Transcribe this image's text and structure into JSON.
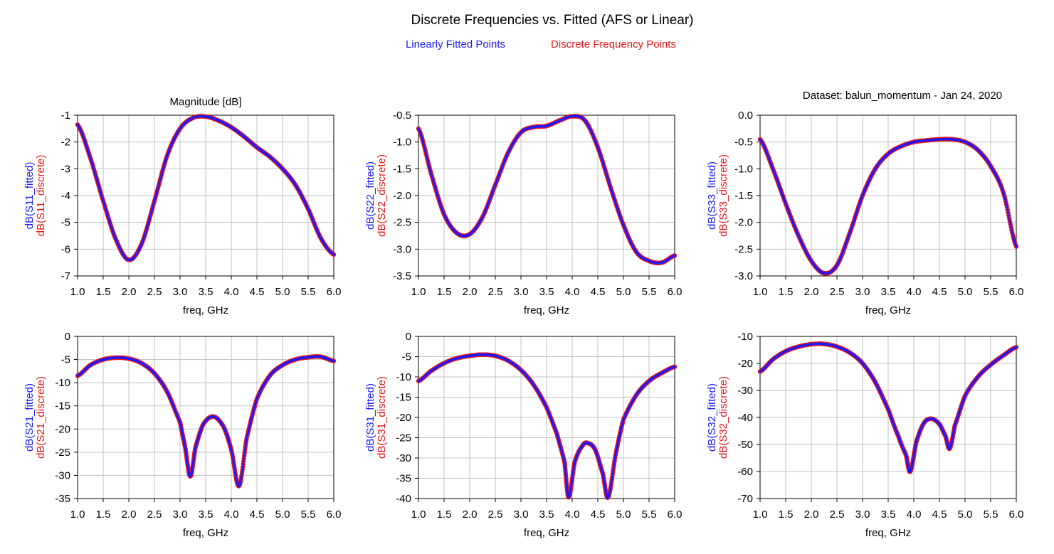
{
  "header": {
    "title": "Discrete Frequencies vs. Fitted (AFS or Linear)",
    "legend_fitted": "Linearly Fitted Points",
    "legend_discrete": "Discrete Frequency Points",
    "plot_caption": "Magnitude [dB]",
    "dataset_label": "Dataset: balun_momentum - Jan 24, 2020"
  },
  "colors": {
    "fitted": "#1a1aff",
    "discrete": "#e8141b",
    "grid": "#c0c0c0",
    "axis": "#000000"
  },
  "chart_data": [
    {
      "type": "line",
      "xlabel": "freq, GHz",
      "ylabel_fitted": "dB(S11_fitted)",
      "ylabel_discrete": "dB(S11_discrete)",
      "xlim": [
        1.0,
        6.0
      ],
      "ylim": [
        -7,
        -1
      ],
      "xticks": [
        "1.0",
        "1.5",
        "2.0",
        "2.5",
        "3.0",
        "3.5",
        "4.0",
        "4.5",
        "5.0",
        "5.5",
        "6.0"
      ],
      "yticks": [
        "-7",
        "-6",
        "-5",
        "-4",
        "-3",
        "-2",
        "-1"
      ],
      "x": [
        1.0,
        1.25,
        1.5,
        1.75,
        2.0,
        2.25,
        2.5,
        2.75,
        3.0,
        3.25,
        3.5,
        3.75,
        4.0,
        4.25,
        4.5,
        4.75,
        5.0,
        5.25,
        5.5,
        5.75,
        6.0
      ],
      "values": [
        -1.35,
        -2.6,
        -4.2,
        -5.65,
        -6.4,
        -5.8,
        -4.2,
        -2.5,
        -1.5,
        -1.1,
        -1.05,
        -1.2,
        -1.45,
        -1.8,
        -2.2,
        -2.55,
        -3.0,
        -3.6,
        -4.5,
        -5.6,
        -6.2
      ]
    },
    {
      "type": "line",
      "xlabel": "freq, GHz",
      "ylabel_fitted": "dB(S22_fitted)",
      "ylabel_discrete": "dB(S22_discrete)",
      "xlim": [
        1.0,
        6.0
      ],
      "ylim": [
        -3.5,
        -0.5
      ],
      "xticks": [
        "1.0",
        "1.5",
        "2.0",
        "2.5",
        "3.0",
        "3.5",
        "4.0",
        "4.5",
        "5.0",
        "5.5",
        "6.0"
      ],
      "yticks": [
        "-3.5",
        "-3.0",
        "-2.5",
        "-2.0",
        "-1.5",
        "-1.0",
        "-0.5"
      ],
      "x": [
        1.0,
        1.25,
        1.5,
        1.75,
        2.0,
        2.25,
        2.5,
        2.75,
        3.0,
        3.25,
        3.5,
        3.75,
        4.0,
        4.25,
        4.5,
        4.75,
        5.0,
        5.25,
        5.5,
        5.75,
        6.0
      ],
      "values": [
        -0.75,
        -1.6,
        -2.35,
        -2.7,
        -2.72,
        -2.4,
        -1.8,
        -1.2,
        -0.82,
        -0.72,
        -0.7,
        -0.6,
        -0.52,
        -0.6,
        -1.1,
        -1.85,
        -2.55,
        -3.05,
        -3.22,
        -3.25,
        -3.12
      ]
    },
    {
      "type": "line",
      "xlabel": "freq, GHz",
      "ylabel_fitted": "dB(S33_fitted)",
      "ylabel_discrete": "dB(S33_discrete)",
      "xlim": [
        1.0,
        6.0
      ],
      "ylim": [
        -3.0,
        0.0
      ],
      "xticks": [
        "1.0",
        "1.5",
        "2.0",
        "2.5",
        "3.0",
        "3.5",
        "4.0",
        "4.5",
        "5.0",
        "5.5",
        "6.0"
      ],
      "yticks": [
        "-3.0",
        "-2.5",
        "-2.0",
        "-1.5",
        "-1.0",
        "-0.5",
        "0.0"
      ],
      "x": [
        1.0,
        1.25,
        1.5,
        1.75,
        2.0,
        2.25,
        2.5,
        2.75,
        3.0,
        3.25,
        3.5,
        3.75,
        4.0,
        4.25,
        4.5,
        4.75,
        5.0,
        5.25,
        5.5,
        5.75,
        6.0
      ],
      "values": [
        -0.45,
        -1.0,
        -1.65,
        -2.25,
        -2.72,
        -2.95,
        -2.8,
        -2.2,
        -1.5,
        -1.0,
        -0.72,
        -0.58,
        -0.5,
        -0.47,
        -0.45,
        -0.45,
        -0.5,
        -0.65,
        -0.95,
        -1.45,
        -2.45
      ]
    },
    {
      "type": "line",
      "xlabel": "freq, GHz",
      "ylabel_fitted": "dB(S21_fitted)",
      "ylabel_discrete": "dB(S21_discrete)",
      "xlim": [
        1.0,
        6.0
      ],
      "ylim": [
        -35,
        0
      ],
      "xticks": [
        "1.0",
        "1.5",
        "2.0",
        "2.5",
        "3.0",
        "3.5",
        "4.0",
        "4.5",
        "5.0",
        "5.5",
        "6.0"
      ],
      "yticks": [
        "-35",
        "-30",
        "-25",
        "-20",
        "-15",
        "-10",
        "-5",
        "0"
      ],
      "x": [
        1.0,
        1.25,
        1.5,
        1.75,
        2.0,
        2.25,
        2.5,
        2.75,
        3.0,
        3.1,
        3.2,
        3.3,
        3.45,
        3.65,
        3.85,
        4.0,
        4.15,
        4.3,
        4.5,
        4.75,
        5.0,
        5.25,
        5.5,
        5.75,
        6.0
      ],
      "values": [
        -8.5,
        -6.2,
        -5.0,
        -4.6,
        -4.8,
        -5.8,
        -8.0,
        -12.0,
        -18.5,
        -24.0,
        -30.2,
        -24.0,
        -19.0,
        -17.3,
        -19.5,
        -24.5,
        -32.3,
        -22.0,
        -13.5,
        -8.5,
        -6.2,
        -5.0,
        -4.5,
        -4.4,
        -5.3
      ]
    },
    {
      "type": "line",
      "xlabel": "freq, GHz",
      "ylabel_fitted": "dB(S31_fitted)",
      "ylabel_discrete": "dB(S31_discrete)",
      "xlim": [
        1.0,
        6.0
      ],
      "ylim": [
        -40,
        0
      ],
      "xticks": [
        "1.0",
        "1.5",
        "2.0",
        "2.5",
        "3.0",
        "3.5",
        "4.0",
        "4.5",
        "5.0",
        "5.5",
        "6.0"
      ],
      "yticks": [
        "-40",
        "-35",
        "-30",
        "-25",
        "-20",
        "-15",
        "-10",
        "-5",
        "0"
      ],
      "x": [
        1.0,
        1.25,
        1.5,
        1.75,
        2.0,
        2.25,
        2.5,
        2.75,
        3.0,
        3.25,
        3.5,
        3.7,
        3.85,
        3.93,
        4.05,
        4.2,
        4.3,
        4.45,
        4.6,
        4.7,
        4.85,
        5.0,
        5.25,
        5.5,
        5.75,
        6.0
      ],
      "values": [
        -11.0,
        -8.5,
        -6.6,
        -5.4,
        -4.8,
        -4.5,
        -4.8,
        -6.0,
        -8.3,
        -12.0,
        -17.5,
        -24.0,
        -31.0,
        -39.7,
        -31.0,
        -27.0,
        -26.3,
        -28.0,
        -34.0,
        -39.7,
        -29.0,
        -20.5,
        -14.5,
        -11.0,
        -9.0,
        -7.5
      ]
    },
    {
      "type": "line",
      "xlabel": "freq, GHz",
      "ylabel_fitted": "dB(S32_fitted)",
      "ylabel_discrete": "dB(S32_discrete)",
      "xlim": [
        1.0,
        6.0
      ],
      "ylim": [
        -70,
        -10
      ],
      "xticks": [
        "1.0",
        "1.5",
        "2.0",
        "2.5",
        "3.0",
        "3.5",
        "4.0",
        "4.5",
        "5.0",
        "5.5",
        "6.0"
      ],
      "yticks": [
        "-70",
        "-60",
        "-50",
        "-40",
        "-30",
        "-20",
        "-10"
      ],
      "x": [
        1.0,
        1.25,
        1.5,
        1.75,
        2.0,
        2.25,
        2.5,
        2.75,
        3.0,
        3.25,
        3.5,
        3.7,
        3.85,
        3.93,
        4.05,
        4.2,
        4.35,
        4.5,
        4.62,
        4.7,
        4.8,
        5.0,
        5.25,
        5.5,
        5.75,
        6.0
      ],
      "values": [
        -23.0,
        -18.5,
        -15.5,
        -13.8,
        -12.9,
        -12.8,
        -13.8,
        -16.0,
        -20.0,
        -27.0,
        -37.0,
        -47.0,
        -54.0,
        -60.0,
        -49.0,
        -42.0,
        -40.5,
        -42.5,
        -47.0,
        -51.5,
        -43.0,
        -32.0,
        -25.0,
        -20.5,
        -17.0,
        -14.0
      ]
    }
  ]
}
